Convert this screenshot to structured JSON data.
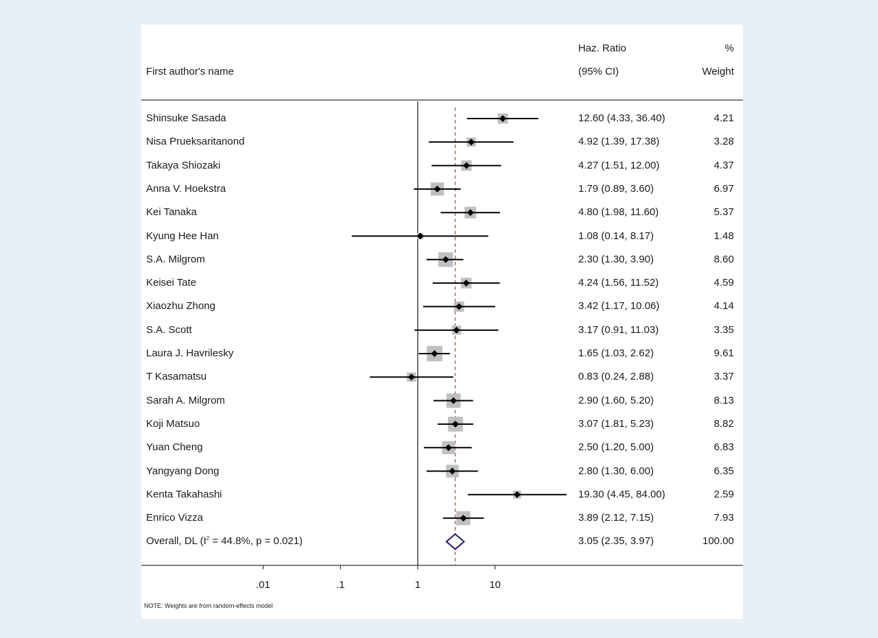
{
  "header": {
    "study_label": "First author's name",
    "effect_label": "Haz. Ratio",
    "ci_label": "(95% CI)",
    "weight_pct": "%",
    "weight_label": "Weight"
  },
  "note": "NOTE: Weights are from random-effects model",
  "chart_data": {
    "type": "forest",
    "title": "",
    "xscale": "log",
    "xticks": [
      0.01,
      0.1,
      1,
      10
    ],
    "xtick_labels": [
      ".01",
      ".1",
      "1",
      "10"
    ],
    "xlim": [
      0.0025,
      200
    ],
    "null_line": 1,
    "overall_line": 3.05,
    "studies": [
      {
        "name": "Shinsuke Sasada",
        "hr": 12.6,
        "lo": 4.33,
        "hi": 36.4,
        "ci_text": "12.60 (4.33, 36.40)",
        "weight": "4.21"
      },
      {
        "name": "Nisa Prueksaritanond",
        "hr": 4.92,
        "lo": 1.39,
        "hi": 17.38,
        "ci_text": "4.92 (1.39, 17.38)",
        "weight": "3.28"
      },
      {
        "name": "Takaya Shiozaki",
        "hr": 4.27,
        "lo": 1.51,
        "hi": 12.0,
        "ci_text": "4.27 (1.51, 12.00)",
        "weight": "4.37"
      },
      {
        "name": "Anna V. Hoekstra",
        "hr": 1.79,
        "lo": 0.89,
        "hi": 3.6,
        "ci_text": "1.79 (0.89, 3.60)",
        "weight": "6.97"
      },
      {
        "name": "Kei Tanaka",
        "hr": 4.8,
        "lo": 1.98,
        "hi": 11.6,
        "ci_text": "4.80 (1.98, 11.60)",
        "weight": "5.37"
      },
      {
        "name": "Kyung Hee Han",
        "hr": 1.08,
        "lo": 0.14,
        "hi": 8.17,
        "ci_text": "1.08 (0.14, 8.17)",
        "weight": "1.48"
      },
      {
        "name": "S.A. Milgrom",
        "hr": 2.3,
        "lo": 1.3,
        "hi": 3.9,
        "ci_text": "2.30 (1.30, 3.90)",
        "weight": "8.60"
      },
      {
        "name": "Keisei Tate",
        "hr": 4.24,
        "lo": 1.56,
        "hi": 11.52,
        "ci_text": "4.24 (1.56, 11.52)",
        "weight": "4.59"
      },
      {
        "name": "Xiaozhu Zhong",
        "hr": 3.42,
        "lo": 1.17,
        "hi": 10.06,
        "ci_text": "3.42 (1.17, 10.06)",
        "weight": "4.14"
      },
      {
        "name": "S.A. Scott",
        "hr": 3.17,
        "lo": 0.91,
        "hi": 11.03,
        "ci_text": "3.17 (0.91, 11.03)",
        "weight": "3.35"
      },
      {
        "name": "Laura J. Havrilesky",
        "hr": 1.65,
        "lo": 1.03,
        "hi": 2.62,
        "ci_text": "1.65 (1.03, 2.62)",
        "weight": "9.61"
      },
      {
        "name": "T Kasamatsu",
        "hr": 0.83,
        "lo": 0.24,
        "hi": 2.88,
        "ci_text": "0.83 (0.24, 2.88)",
        "weight": "3.37"
      },
      {
        "name": "Sarah A. Milgrom",
        "hr": 2.9,
        "lo": 1.6,
        "hi": 5.2,
        "ci_text": "2.90 (1.60, 5.20)",
        "weight": "8.13"
      },
      {
        "name": "Koji Matsuo",
        "hr": 3.07,
        "lo": 1.81,
        "hi": 5.23,
        "ci_text": "3.07 (1.81, 5.23)",
        "weight": "8.82"
      },
      {
        "name": "Yuan Cheng",
        "hr": 2.5,
        "lo": 1.2,
        "hi": 5.0,
        "ci_text": "2.50 (1.20, 5.00)",
        "weight": "6.83"
      },
      {
        "name": "Yangyang Dong",
        "hr": 2.8,
        "lo": 1.3,
        "hi": 6.0,
        "ci_text": "2.80 (1.30, 6.00)",
        "weight": "6.35"
      },
      {
        "name": "Kenta Takahashi",
        "hr": 19.3,
        "lo": 4.45,
        "hi": 84.0,
        "ci_text": "19.30 (4.45, 84.00)",
        "weight": "2.59"
      },
      {
        "name": "Enrico Vizza",
        "hr": 3.89,
        "lo": 2.12,
        "hi": 7.15,
        "ci_text": "3.89 (2.12, 7.15)",
        "weight": "7.93"
      }
    ],
    "overall": {
      "label_prefix": "Overall, DL (I",
      "label_sup": "2",
      "label_suffix": " = 44.8%, p = 0.021)",
      "hr": 3.05,
      "lo": 2.35,
      "hi": 3.97,
      "ci_text": "3.05 (2.35, 3.97)",
      "weight": "100.00"
    },
    "colors": {
      "ci_line": "#000000",
      "marker": "#000000",
      "weight_box": "#c0c0c0",
      "overall_line": "#b05050",
      "diamond": "#1a1a6e"
    }
  }
}
